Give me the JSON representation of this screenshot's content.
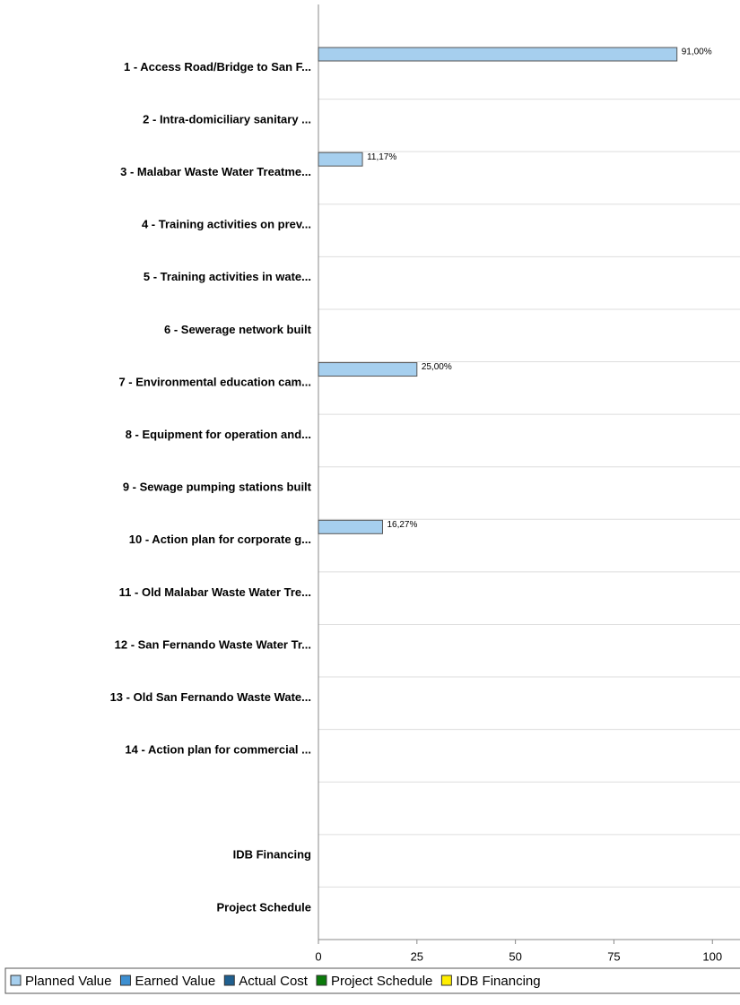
{
  "chart_data": {
    "type": "hbar",
    "categories": [
      "1 - Access Road/Bridge to San F...",
      "2 - Intra-domiciliary sanitary ...",
      "3 - Malabar Waste Water Treatme...",
      "4 - Training activities on prev...",
      "5 - Training activities in wate...",
      "6 - Sewerage network built",
      "7 - Environmental education cam...",
      "8 - Equipment for operation and...",
      "9 - Sewage pumping stations built",
      "10 - Action plan for corporate g...",
      "11 - Old Malabar Waste Water Tre...",
      "12 - San Fernando Waste Water Tr...",
      "13 - Old San Fernando Waste Wate...",
      "14 - Action plan for commercial ...",
      null,
      "IDB Financing",
      "Project Schedule"
    ],
    "series": [
      {
        "name": "Planned Value",
        "color": "#a6cfee",
        "values": [
          91,
          null,
          11.17,
          null,
          null,
          null,
          25,
          null,
          null,
          16.27,
          null,
          null,
          null,
          null,
          null,
          null,
          null
        ],
        "value_labels": [
          "91,00%",
          null,
          "11,17%",
          null,
          null,
          null,
          "25,00%",
          null,
          null,
          "16,27%",
          null,
          null,
          null,
          null,
          null,
          null,
          null
        ]
      },
      {
        "name": "Earned Value",
        "color": "#3d8fd1",
        "values": [
          null,
          null,
          null,
          null,
          null,
          null,
          null,
          null,
          null,
          null,
          null,
          null,
          null,
          null,
          null,
          null,
          null
        ]
      },
      {
        "name": "Actual Cost",
        "color": "#1f5f8f",
        "values": [
          null,
          null,
          null,
          null,
          null,
          null,
          null,
          null,
          null,
          null,
          null,
          null,
          null,
          null,
          null,
          null,
          null
        ]
      },
      {
        "name": "Project Schedule",
        "color": "#0a7a0a",
        "values": [
          null,
          null,
          null,
          null,
          null,
          null,
          null,
          null,
          null,
          null,
          null,
          null,
          null,
          null,
          null,
          null,
          null
        ]
      },
      {
        "name": "IDB Financing",
        "color": "#ffee00",
        "values": [
          null,
          null,
          null,
          null,
          null,
          null,
          null,
          null,
          null,
          null,
          null,
          null,
          null,
          null,
          null,
          null,
          null
        ]
      }
    ],
    "xlim": [
      0,
      107
    ],
    "xticks": [
      0,
      25,
      50,
      75,
      100
    ]
  }
}
